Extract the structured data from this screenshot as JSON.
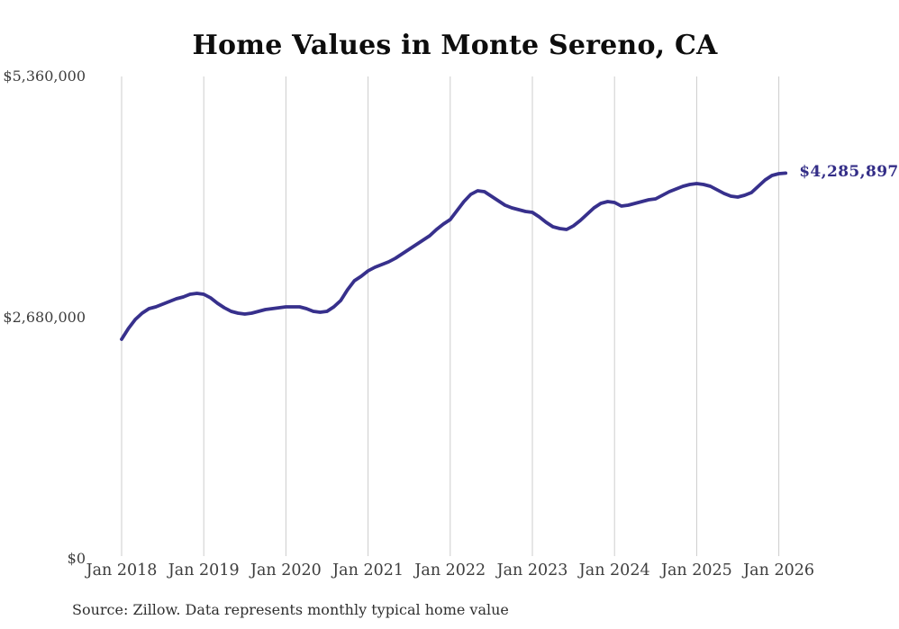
{
  "title": "Home Values in Monte Sereno, CA",
  "source_note": "Source: Zillow. Data represents monthly typical home value",
  "colors": {
    "line": "#37308c",
    "grid": "#cccccc",
    "axis_text": "#3d3d3d",
    "title_text": "#0d0d0d",
    "end_label_text": "#332d87"
  },
  "chart_data": {
    "type": "line",
    "title": "Home Values in Monte Sereno, CA",
    "xlabel": "",
    "ylabel": "",
    "ylim": [
      0,
      5360000
    ],
    "grid": "vertical-only",
    "legend": "none",
    "y_ticks": [
      {
        "value": 0,
        "label": "$0"
      },
      {
        "value": 2680000,
        "label": "$2,680,000"
      },
      {
        "value": 5360000,
        "label": "$5,360,000"
      }
    ],
    "x_tick_labels": [
      "Jan 2018",
      "Jan 2019",
      "Jan 2020",
      "Jan 2021",
      "Jan 2022",
      "Jan 2023",
      "Jan 2024",
      "Jan 2025",
      "Jan 2026"
    ],
    "x_start_month": "2018-01",
    "x_interval": "month",
    "final_value": 4285897,
    "final_value_label": "$4,285,897",
    "series": [
      {
        "name": "Typical home value",
        "values": [
          2440000,
          2560000,
          2660000,
          2730000,
          2780000,
          2800000,
          2830000,
          2860000,
          2890000,
          2910000,
          2940000,
          2950000,
          2940000,
          2900000,
          2840000,
          2790000,
          2750000,
          2730000,
          2720000,
          2730000,
          2750000,
          2770000,
          2780000,
          2790000,
          2800000,
          2800000,
          2800000,
          2780000,
          2750000,
          2740000,
          2750000,
          2800000,
          2870000,
          2990000,
          3090000,
          3140000,
          3200000,
          3240000,
          3270000,
          3300000,
          3340000,
          3390000,
          3440000,
          3490000,
          3540000,
          3590000,
          3660000,
          3720000,
          3770000,
          3870000,
          3970000,
          4050000,
          4090000,
          4080000,
          4030000,
          3980000,
          3930000,
          3900000,
          3880000,
          3860000,
          3850000,
          3800000,
          3740000,
          3690000,
          3670000,
          3660000,
          3700000,
          3760000,
          3830000,
          3900000,
          3950000,
          3970000,
          3960000,
          3920000,
          3930000,
          3950000,
          3970000,
          3990000,
          4000000,
          4040000,
          4080000,
          4110000,
          4140000,
          4160000,
          4170000,
          4160000,
          4140000,
          4100000,
          4060000,
          4030000,
          4020000,
          4040000,
          4070000,
          4140000,
          4210000,
          4260000,
          4280000,
          4285897
        ]
      }
    ]
  }
}
